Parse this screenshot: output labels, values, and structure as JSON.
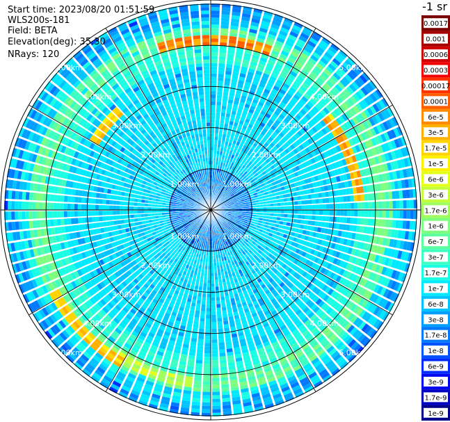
{
  "header": {
    "start_time": "Start time: 2023/08/20 01:51:59",
    "instrument": "WLS200s-181",
    "field": "Field: BETA",
    "elevation": "Elevation(deg): 35.30",
    "nrays": "NRays: 120"
  },
  "colorbar": {
    "unit_label": "-1 sr",
    "ticks": [
      "0.0017",
      "0.001",
      "0.0006",
      "0.0003",
      "0.00017",
      "0.0001",
      "6e-5",
      "3e-5",
      "1.7e-5",
      "1e-5",
      "6e-6",
      "3e-6",
      "1.7e-6",
      "1e-6",
      "6e-7",
      "3e-7",
      "1.7e-7",
      "1e-7",
      "6e-8",
      "3e-8",
      "1.7e-8",
      "1e-8",
      "6e-9",
      "3e-9",
      "1.7e-9",
      "1e-9"
    ],
    "colors": [
      "#7a0000",
      "#a50000",
      "#d10000",
      "#f20000",
      "#ff3300",
      "#ff5e00",
      "#ff8a00",
      "#ffb000",
      "#ffd400",
      "#fff200",
      "#e4ff1a",
      "#c2ff3d",
      "#a0ff5e",
      "#7fff80",
      "#5effa0",
      "#3dffc2",
      "#1affe4",
      "#00eaff",
      "#00c4ff",
      "#009eff",
      "#0078ff",
      "#0052ff",
      "#002cff",
      "#0008f0",
      "#0000c0",
      "#00008a"
    ]
  },
  "chart_data": {
    "type": "polar_ppi",
    "field": "BETA",
    "nrays": 120,
    "range_rings_km": [
      1,
      2,
      3,
      4,
      5
    ],
    "range_labels": [
      "1.00km",
      "2.00km",
      "3.00km",
      "4.00km",
      "5.00km"
    ],
    "spoke_count": 12,
    "max_range_km": 5.1,
    "bright_arcs": [
      {
        "az_start": 340,
        "az_end": 20,
        "range_km": 4.1,
        "level": 5
      },
      {
        "az_start": 50,
        "az_end": 85,
        "range_km": 3.6,
        "level": 6
      },
      {
        "az_start": 300,
        "az_end": 315,
        "range_km": 3.3,
        "level": 7
      },
      {
        "az_start": 210,
        "az_end": 240,
        "range_km": 4.3,
        "level": 7
      },
      {
        "az_start": 185,
        "az_end": 215,
        "range_km": 4.2,
        "level": 10
      }
    ]
  }
}
